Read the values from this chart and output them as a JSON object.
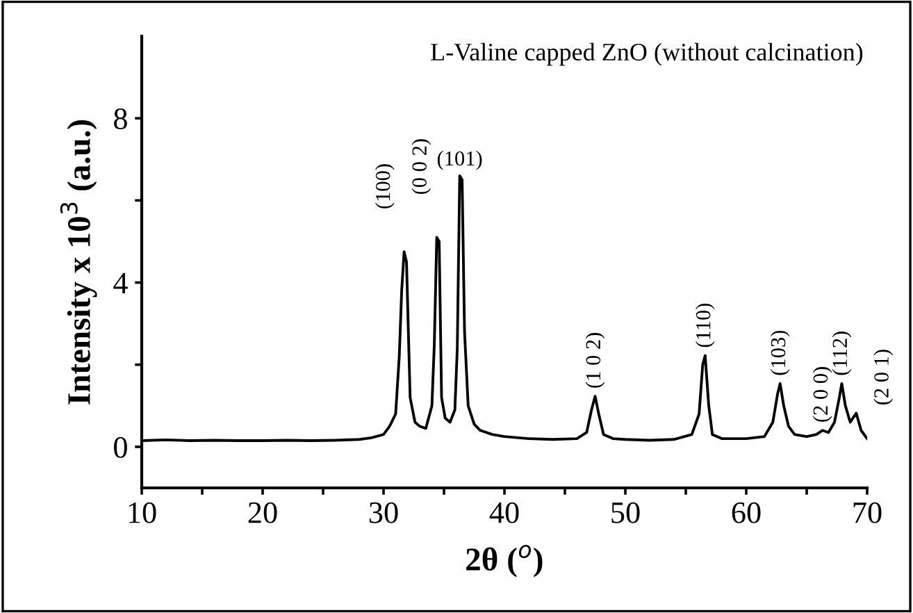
{
  "chart_data": {
    "type": "line",
    "xlabel": "2θ ($^{o}$)",
    "ylabel": "Intensity x 10$^{3}$ (a.u.)",
    "xlim": [
      10,
      70
    ],
    "ylim": [
      -1,
      10
    ],
    "xticks": [
      10,
      {
        "value": 15,
        "label": null
      },
      20,
      {
        "value": 25,
        "label": null
      },
      30,
      {
        "value": 35,
        "label": null
      },
      40,
      {
        "value": 45,
        "label": null
      },
      50,
      {
        "value": 55,
        "label": null
      },
      60,
      {
        "value": 65,
        "label": null
      },
      70
    ],
    "yticks": [
      0,
      {
        "value": 2,
        "label": null
      },
      4,
      {
        "value": 6,
        "label": null
      },
      8
    ],
    "grid": false,
    "legend": false,
    "marker": "none",
    "line_style": "solid",
    "series": [
      {
        "color": "#000000",
        "x": [
          10,
          12,
          14,
          16,
          18,
          20,
          22,
          24,
          26,
          28,
          29,
          30,
          30.5,
          31,
          31.3,
          31.5,
          31.7,
          31.9,
          32.2,
          32.6,
          33,
          33.5,
          34,
          34.2,
          34.4,
          34.6,
          34.8,
          35.1,
          35.5,
          35.9,
          36.1,
          36.3,
          36.5,
          36.7,
          37,
          37.5,
          38,
          39,
          40,
          42,
          44,
          46,
          46.8,
          47.2,
          47.5,
          47.8,
          48.2,
          49,
          50,
          52,
          54,
          55.5,
          56.1,
          56.4,
          56.6,
          56.9,
          57.2,
          58,
          60,
          61.5,
          62.2,
          62.6,
          62.8,
          63.1,
          63.5,
          64,
          65,
          65.8,
          66.3,
          66.8,
          67.3,
          67.7,
          67.9,
          68.2,
          68.6,
          69.1,
          69.5,
          70
        ],
        "values": [
          0.15,
          0.17,
          0.15,
          0.16,
          0.15,
          0.15,
          0.16,
          0.15,
          0.16,
          0.18,
          0.22,
          0.3,
          0.5,
          0.8,
          2.2,
          3.8,
          4.75,
          4.5,
          1.2,
          0.6,
          0.5,
          0.45,
          1.0,
          2.5,
          5.1,
          5.0,
          1.2,
          0.7,
          0.6,
          0.9,
          2.4,
          6.6,
          6.5,
          2.8,
          1.0,
          0.55,
          0.4,
          0.3,
          0.25,
          0.2,
          0.18,
          0.2,
          0.35,
          0.9,
          1.23,
          0.8,
          0.3,
          0.2,
          0.18,
          0.16,
          0.18,
          0.3,
          0.8,
          2.0,
          2.22,
          1.0,
          0.3,
          0.2,
          0.2,
          0.25,
          0.6,
          1.3,
          1.54,
          1.0,
          0.5,
          0.3,
          0.25,
          0.3,
          0.4,
          0.35,
          0.6,
          1.2,
          1.54,
          1.0,
          0.6,
          0.82,
          0.4,
          0.2
        ]
      }
    ],
    "annotations": [
      "L-Valine capped ZnO (without calcination)",
      {
        "text": "(100)",
        "x": 31.7,
        "y": 4.75
      },
      {
        "text": "(0 0 2)",
        "x": 34.4,
        "y": 5.1
      },
      {
        "text": "(101)",
        "x": 36.3,
        "y": 6.6
      },
      {
        "text": "(1 0 2)",
        "x": 47.5,
        "y": 1.23
      },
      {
        "text": "(110)",
        "x": 56.6,
        "y": 2.22
      },
      {
        "text": "(103)",
        "x": 62.8,
        "y": 1.54
      },
      {
        "text": "(2 0 0)",
        "x": 66.3,
        "y": 0.4
      },
      {
        "text": "(112)",
        "x": 67.9,
        "y": 1.54
      },
      {
        "text": "(2 0 1)",
        "x": 69.1,
        "y": 0.82
      }
    ]
  }
}
